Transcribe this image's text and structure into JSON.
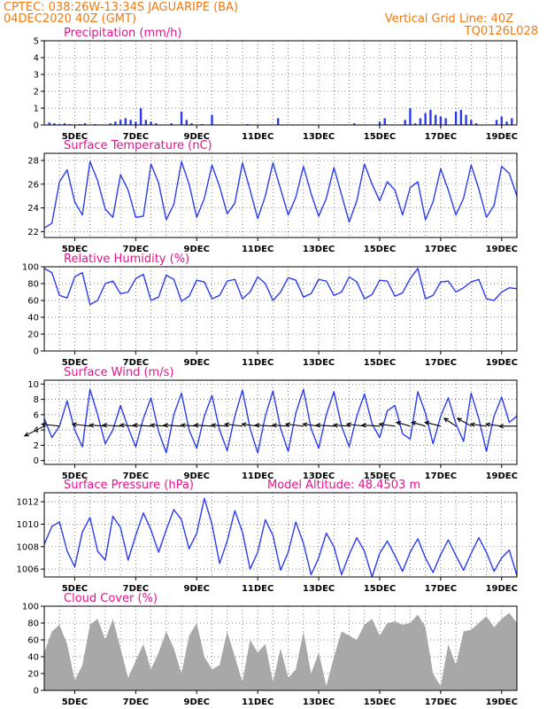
{
  "header": {
    "line1": "CPTEC:   038:26W-13:34S   JAGUARIPE (BA)",
    "line2": "04DEC2020 40Z (GMT)",
    "grid_note": "Vertical Grid Line: 40Z",
    "code": "TQ0126L028"
  },
  "colors": {
    "header": "#f07a10",
    "panel_title": "#e8128c",
    "series_line": "#2b3cf0",
    "cloud_fill": "#a8a8a8",
    "wind_arrow": "#000000"
  },
  "chart_data": [
    {
      "type": "bar",
      "title": "Precipitation (mm/h)",
      "ylim": [
        0,
        5
      ],
      "yticks": [
        0,
        1,
        2,
        3,
        4,
        5
      ],
      "xticks": [
        "5DEC",
        "7DEC",
        "9DEC",
        "11DEC",
        "13DEC",
        "15DEC",
        "17DEC",
        "19DEC"
      ],
      "xlim_hours": [
        0,
        372
      ],
      "grid": true,
      "color": "#2b3cf0",
      "x_hours": [
        4,
        8,
        12,
        16,
        20,
        24,
        28,
        32,
        36,
        40,
        44,
        48,
        52,
        56,
        60,
        64,
        68,
        72,
        76,
        80,
        84,
        88,
        92,
        96,
        100,
        104,
        108,
        112,
        116,
        120,
        124,
        128,
        132,
        136,
        140,
        144,
        148,
        152,
        156,
        160,
        164,
        168,
        172,
        176,
        180,
        184,
        188,
        192,
        196,
        200,
        204,
        208,
        212,
        216,
        220,
        224,
        228,
        232,
        236,
        240,
        244,
        248,
        252,
        256,
        260,
        264,
        268,
        272,
        276,
        280,
        284,
        288,
        292,
        296,
        300,
        304,
        308,
        312,
        316,
        320,
        324,
        328,
        332,
        336,
        340,
        344,
        348,
        352,
        356,
        360,
        364,
        368
      ],
      "values": [
        0.15,
        0.1,
        0.05,
        0.1,
        0.05,
        0.0,
        0.05,
        0.1,
        0.0,
        0.05,
        0.0,
        0.0,
        0.1,
        0.2,
        0.3,
        0.4,
        0.3,
        0.2,
        1.0,
        0.3,
        0.2,
        0.1,
        0.0,
        0.0,
        0.1,
        0.0,
        0.8,
        0.3,
        0.1,
        0.0,
        0.05,
        0.0,
        0.6,
        0.0,
        0.0,
        0.0,
        0.0,
        0.0,
        0.0,
        0.05,
        0.0,
        0.0,
        0.0,
        0.0,
        0.0,
        0.4,
        0.0,
        0.0,
        0.0,
        0.0,
        0.0,
        0.0,
        0.0,
        0.0,
        0.0,
        0.0,
        0.0,
        0.0,
        0.0,
        0.0,
        0.1,
        0.0,
        0.0,
        0.0,
        0.0,
        0.2,
        0.4,
        0.0,
        0.0,
        0.0,
        0.3,
        1.0,
        0.1,
        0.4,
        0.7,
        0.9,
        0.6,
        0.5,
        0.4,
        0.0,
        0.8,
        0.9,
        0.6,
        0.3,
        0.1,
        0.0,
        0.0,
        0.0,
        0.3,
        0.5,
        0.2,
        0.4
      ]
    },
    {
      "type": "line",
      "title": "Surface Temperature (nC)",
      "ylim": [
        21.5,
        28.6
      ],
      "yticks": [
        22,
        24,
        26,
        28
      ],
      "xticks": [
        "5DEC",
        "7DEC",
        "9DEC",
        "11DEC",
        "13DEC",
        "15DEC",
        "17DEC",
        "19DEC"
      ],
      "xlim_hours": [
        0,
        372
      ],
      "grid": true,
      "color": "#2b3cf0",
      "x_hours": [
        0,
        6,
        12,
        18,
        24,
        30,
        36,
        42,
        48,
        54,
        60,
        66,
        72,
        78,
        84,
        90,
        96,
        102,
        108,
        114,
        120,
        126,
        132,
        138,
        144,
        150,
        156,
        162,
        168,
        174,
        180,
        186,
        192,
        198,
        204,
        210,
        216,
        222,
        228,
        234,
        240,
        246,
        252,
        258,
        264,
        270,
        276,
        282,
        288,
        294,
        300,
        306,
        312,
        318,
        324,
        330,
        336,
        342,
        348,
        354,
        360,
        366,
        372
      ],
      "values": [
        22.3,
        22.7,
        26.2,
        27.2,
        24.5,
        23.4,
        27.9,
        26.3,
        23.9,
        23.2,
        26.8,
        25.5,
        23.2,
        23.3,
        27.7,
        26.1,
        23.0,
        24.3,
        27.9,
        26.0,
        23.2,
        24.8,
        27.6,
        25.8,
        23.5,
        24.4,
        27.8,
        25.5,
        23.1,
        25.0,
        27.8,
        25.6,
        23.4,
        24.9,
        27.5,
        25.2,
        23.3,
        24.8,
        27.4,
        25.1,
        22.8,
        24.6,
        27.7,
        26.0,
        24.6,
        26.2,
        25.5,
        23.4,
        25.7,
        26.2,
        23.0,
        24.5,
        27.3,
        25.5,
        23.4,
        24.8,
        27.6,
        25.6,
        23.2,
        24.2,
        27.5,
        26.9,
        25.0
      ]
    },
    {
      "type": "line",
      "title": "Relative Humidity (%)",
      "ylim": [
        0,
        100
      ],
      "yticks": [
        0,
        20,
        40,
        60,
        80,
        100
      ],
      "xticks": [
        "5DEC",
        "7DEC",
        "9DEC",
        "11DEC",
        "13DEC",
        "15DEC",
        "17DEC",
        "19DEC"
      ],
      "xlim_hours": [
        0,
        372
      ],
      "grid": true,
      "color": "#2b3cf0",
      "x_hours": [
        0,
        6,
        12,
        18,
        24,
        30,
        36,
        42,
        48,
        54,
        60,
        66,
        72,
        78,
        84,
        90,
        96,
        102,
        108,
        114,
        120,
        126,
        132,
        138,
        144,
        150,
        156,
        162,
        168,
        174,
        180,
        186,
        192,
        198,
        204,
        210,
        216,
        222,
        228,
        234,
        240,
        246,
        252,
        258,
        264,
        270,
        276,
        282,
        288,
        294,
        300,
        306,
        312,
        318,
        324,
        330,
        336,
        342,
        348,
        354,
        360,
        366,
        372
      ],
      "values": [
        98,
        93,
        66,
        63,
        88,
        93,
        55,
        60,
        80,
        83,
        68,
        70,
        86,
        91,
        60,
        64,
        90,
        85,
        59,
        65,
        84,
        82,
        62,
        66,
        83,
        85,
        62,
        70,
        88,
        80,
        60,
        70,
        87,
        84,
        64,
        68,
        85,
        83,
        66,
        70,
        88,
        82,
        62,
        67,
        84,
        83,
        65,
        69,
        86,
        98,
        62,
        66,
        82,
        83,
        70,
        75,
        82,
        85,
        62,
        60,
        70,
        75,
        74
      ]
    },
    {
      "type": "line",
      "title": "Surface Wind (m/s)",
      "ylim": [
        -0.5,
        10.5
      ],
      "yticks": [
        0,
        2,
        4,
        6,
        8,
        10
      ],
      "xticks": [
        "5DEC",
        "7DEC",
        "9DEC",
        "11DEC",
        "13DEC",
        "15DEC",
        "17DEC",
        "19DEC"
      ],
      "xlim_hours": [
        0,
        372
      ],
      "grid": true,
      "color": "#2b3cf0",
      "x_hours": [
        0,
        6,
        12,
        18,
        24,
        30,
        36,
        42,
        48,
        54,
        60,
        66,
        72,
        78,
        84,
        90,
        96,
        102,
        108,
        114,
        120,
        126,
        132,
        138,
        144,
        150,
        156,
        162,
        168,
        174,
        180,
        186,
        192,
        198,
        204,
        210,
        216,
        222,
        228,
        234,
        240,
        246,
        252,
        258,
        264,
        270,
        276,
        282,
        288,
        294,
        300,
        306,
        312,
        318,
        324,
        330,
        336,
        342,
        348,
        354,
        360,
        366,
        372
      ],
      "values": [
        5.5,
        3.0,
        4.5,
        7.8,
        4.0,
        1.8,
        9.3,
        6.0,
        2.2,
        4.0,
        7.2,
        4.3,
        1.8,
        5.5,
        8.2,
        3.8,
        1.0,
        6.0,
        8.8,
        4.0,
        1.6,
        5.8,
        8.5,
        4.0,
        1.3,
        5.8,
        9.2,
        4.2,
        1.0,
        5.8,
        9.1,
        4.2,
        1.2,
        6.2,
        9.3,
        4.2,
        1.6,
        6.0,
        9.0,
        4.5,
        1.8,
        5.8,
        8.7,
        4.8,
        3.0,
        6.5,
        7.2,
        3.5,
        2.8,
        9.0,
        6.2,
        2.2,
        5.8,
        8.2,
        4.8,
        2.5,
        8.8,
        5.5,
        1.2,
        5.8,
        8.3,
        5.0,
        5.8
      ],
      "arrows": {
        "x_hours": [
          0,
          12,
          36,
          48,
          60,
          72,
          84,
          96,
          108,
          120,
          132,
          144,
          156,
          168,
          180,
          192,
          204,
          216,
          228,
          240,
          252,
          264,
          276,
          288,
          300,
          312,
          324,
          336,
          348,
          360,
          372
        ],
        "u": [
          -1.0,
          -0.9,
          -0.9,
          -0.8,
          -0.9,
          -0.8,
          -0.9,
          -0.8,
          -0.9,
          -0.8,
          -0.9,
          -0.8,
          -0.9,
          -0.8,
          -0.9,
          -0.8,
          -0.9,
          -0.8,
          -0.9,
          -0.8,
          -0.9,
          -0.9,
          -0.8,
          -0.7,
          -0.7,
          -0.8,
          -0.6,
          -0.7,
          -0.8,
          -0.8,
          -0.9
        ],
        "v": [
          -0.5,
          0.1,
          0.1,
          0.05,
          0.05,
          0.05,
          0.05,
          0.05,
          0.05,
          0.05,
          0.05,
          0.05,
          0.1,
          0.1,
          0.05,
          0.05,
          0.1,
          0.1,
          0.05,
          0.05,
          0.1,
          0.05,
          0.1,
          0.2,
          0.2,
          0.2,
          0.4,
          0.4,
          0.1,
          0.1,
          0.0
        ]
      }
    },
    {
      "type": "line",
      "title": "Surface Pressure (hPa)",
      "annotation": "Model Altitude: 48.4503 m",
      "ylim": [
        1005.3,
        1012.8
      ],
      "yticks": [
        1006,
        1008,
        1010,
        1012
      ],
      "xticks": [
        "5DEC",
        "7DEC",
        "9DEC",
        "11DEC",
        "13DEC",
        "15DEC",
        "17DEC",
        "19DEC"
      ],
      "xlim_hours": [
        0,
        372
      ],
      "grid": true,
      "color": "#2b3cf0",
      "x_hours": [
        0,
        6,
        12,
        18,
        24,
        30,
        36,
        42,
        48,
        54,
        60,
        66,
        72,
        78,
        84,
        90,
        96,
        102,
        108,
        114,
        120,
        126,
        132,
        138,
        144,
        150,
        156,
        162,
        168,
        174,
        180,
        186,
        192,
        198,
        204,
        210,
        216,
        222,
        228,
        234,
        240,
        246,
        252,
        258,
        264,
        270,
        276,
        282,
        288,
        294,
        300,
        306,
        312,
        318,
        324,
        330,
        336,
        342,
        348,
        354,
        360,
        366,
        372
      ],
      "values": [
        1008.2,
        1009.8,
        1010.2,
        1007.6,
        1006.2,
        1009.3,
        1010.6,
        1007.6,
        1006.8,
        1010.7,
        1009.7,
        1006.8,
        1009.0,
        1011.0,
        1009.5,
        1007.5,
        1009.5,
        1011.3,
        1010.4,
        1007.8,
        1009.2,
        1012.3,
        1010.0,
        1006.5,
        1008.5,
        1011.2,
        1009.3,
        1006.0,
        1007.5,
        1010.4,
        1009.0,
        1005.9,
        1007.5,
        1010.2,
        1008.3,
        1005.5,
        1007.0,
        1009.2,
        1008.0,
        1005.5,
        1007.3,
        1008.8,
        1007.6,
        1005.3,
        1007.4,
        1008.5,
        1007.2,
        1005.8,
        1007.5,
        1008.7,
        1007.0,
        1005.7,
        1007.3,
        1008.6,
        1007.2,
        1005.9,
        1007.4,
        1008.8,
        1007.5,
        1005.8,
        1007.0,
        1007.7,
        1005.4
      ]
    },
    {
      "type": "area",
      "title": "Cloud Cover (%)",
      "ylim": [
        0,
        100
      ],
      "yticks": [
        0,
        20,
        40,
        60,
        80,
        100
      ],
      "xticks": [
        "5DEC",
        "7DEC",
        "9DEC",
        "11DEC",
        "13DEC",
        "15DEC",
        "17DEC",
        "19DEC"
      ],
      "xlim_hours": [
        0,
        372
      ],
      "grid": true,
      "color": "#a8a8a8",
      "x_hours": [
        0,
        6,
        12,
        18,
        24,
        30,
        36,
        42,
        48,
        54,
        60,
        66,
        72,
        78,
        84,
        90,
        96,
        102,
        108,
        114,
        120,
        126,
        132,
        138,
        144,
        150,
        156,
        162,
        168,
        174,
        180,
        186,
        192,
        198,
        204,
        210,
        216,
        222,
        228,
        234,
        240,
        246,
        252,
        258,
        264,
        270,
        276,
        282,
        288,
        294,
        300,
        306,
        312,
        318,
        324,
        330,
        336,
        342,
        348,
        354,
        360,
        366,
        372
      ],
      "values": [
        45,
        70,
        78,
        55,
        12,
        30,
        78,
        85,
        60,
        85,
        50,
        15,
        35,
        55,
        25,
        45,
        70,
        50,
        20,
        65,
        80,
        40,
        25,
        30,
        70,
        40,
        10,
        60,
        45,
        55,
        10,
        50,
        15,
        25,
        70,
        20,
        45,
        5,
        40,
        70,
        65,
        60,
        78,
        85,
        65,
        80,
        82,
        78,
        80,
        90,
        75,
        20,
        5,
        55,
        30,
        70,
        72,
        80,
        88,
        75,
        85,
        92,
        80
      ]
    }
  ]
}
